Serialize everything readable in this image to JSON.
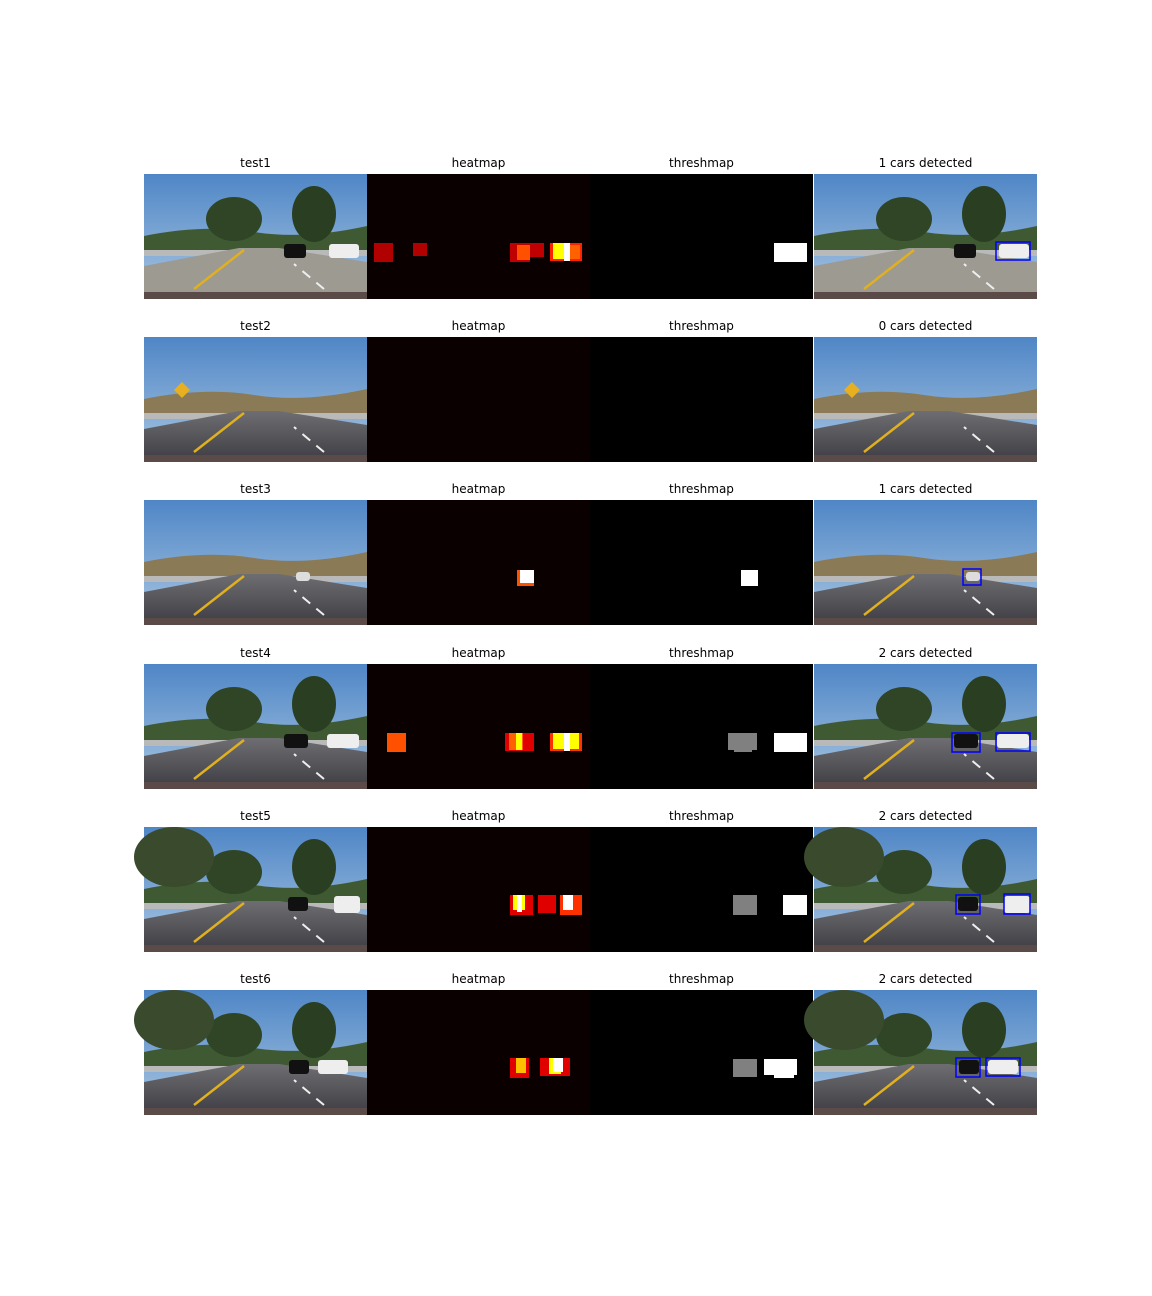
{
  "rows": [
    {
      "titles": [
        "test1",
        "heatmap",
        "threshmap",
        "1 cars detected"
      ]
    },
    {
      "titles": [
        "test2",
        "heatmap",
        "threshmap",
        "0 cars detected"
      ]
    },
    {
      "titles": [
        "test3",
        "heatmap",
        "threshmap",
        "1 cars detected"
      ]
    },
    {
      "titles": [
        "test4",
        "heatmap",
        "threshmap",
        "2 cars detected"
      ]
    },
    {
      "titles": [
        "test5",
        "heatmap",
        "threshmap",
        "2 cars detected"
      ]
    },
    {
      "titles": [
        "test6",
        "heatmap",
        "threshmap",
        "2 cars detected"
      ]
    }
  ]
}
